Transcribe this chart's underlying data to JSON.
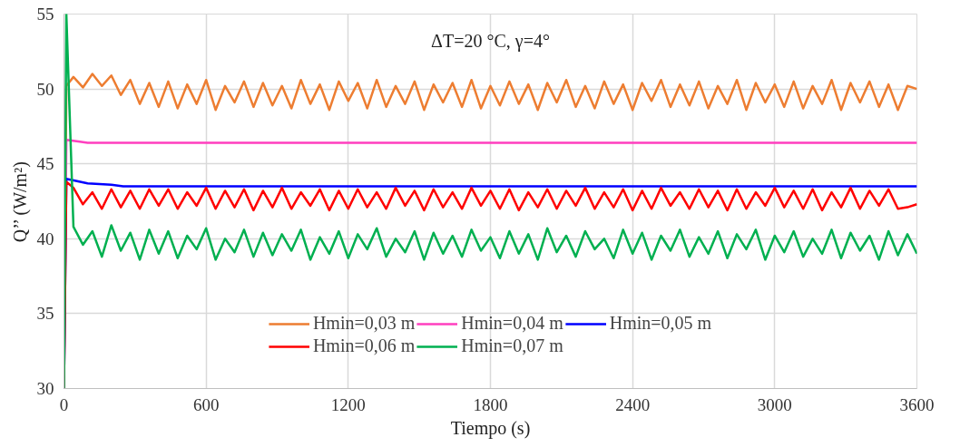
{
  "chart_data": {
    "type": "line",
    "xlabel": "Tiempo (s)",
    "ylabel": "Q’’ (W/m²)",
    "annotations": [
      "ΔT=20 °C, γ=4°"
    ],
    "xlim": [
      0,
      3600
    ],
    "xticks": [
      0,
      600,
      1200,
      1800,
      2400,
      3000,
      3600
    ],
    "ylim": [
      30,
      55
    ],
    "yticks": [
      30,
      35,
      40,
      45,
      50,
      55
    ],
    "grid": true,
    "legend": "bottom",
    "marker": "none",
    "line_style": "solid",
    "x": [
      0,
      10,
      40,
      80,
      120,
      160,
      200,
      240,
      280,
      320,
      360,
      400,
      440,
      480,
      520,
      560,
      600,
      640,
      680,
      720,
      760,
      800,
      840,
      880,
      920,
      960,
      1000,
      1040,
      1080,
      1120,
      1160,
      1200,
      1240,
      1280,
      1320,
      1360,
      1400,
      1440,
      1480,
      1520,
      1560,
      1600,
      1640,
      1680,
      1720,
      1760,
      1800,
      1840,
      1880,
      1920,
      1960,
      2000,
      2040,
      2080,
      2120,
      2160,
      2200,
      2240,
      2280,
      2320,
      2360,
      2400,
      2440,
      2480,
      2520,
      2560,
      2600,
      2640,
      2680,
      2720,
      2760,
      2800,
      2840,
      2880,
      2920,
      2960,
      3000,
      3040,
      3080,
      3120,
      3160,
      3200,
      3240,
      3280,
      3320,
      3360,
      3400,
      3440,
      3480,
      3520,
      3560,
      3600
    ],
    "series": [
      {
        "name": "Hmin=0,03 m",
        "color": "#ed7d31",
        "values": [
          30,
          50.2,
          50.8,
          50.1,
          51.0,
          50.2,
          50.9,
          49.6,
          50.6,
          49.0,
          50.4,
          48.8,
          50.5,
          48.7,
          50.3,
          49.0,
          50.6,
          48.6,
          50.2,
          49.1,
          50.5,
          48.8,
          50.4,
          48.9,
          50.2,
          48.7,
          50.6,
          49.0,
          50.3,
          48.6,
          50.5,
          49.2,
          50.4,
          48.7,
          50.6,
          48.8,
          50.2,
          49.0,
          50.5,
          48.6,
          50.3,
          49.1,
          50.4,
          48.8,
          50.6,
          48.7,
          50.2,
          48.9,
          50.5,
          49.0,
          50.3,
          48.6,
          50.4,
          49.1,
          50.6,
          48.8,
          50.2,
          48.7,
          50.5,
          49.0,
          50.3,
          48.6,
          50.4,
          49.2,
          50.6,
          48.8,
          50.3,
          48.9,
          50.5,
          48.7,
          50.2,
          49.0,
          50.6,
          48.6,
          50.4,
          49.1,
          50.3,
          48.8,
          50.5,
          48.7,
          50.2,
          49.0,
          50.6,
          48.6,
          50.4,
          49.1,
          50.5,
          48.8,
          50.3,
          48.6,
          50.2,
          50.0
        ]
      },
      {
        "name": "Hmin=0,04 m",
        "color": "#ff3fbf",
        "x": [
          0,
          10,
          60,
          100,
          3600
        ],
        "values": [
          30,
          46.6,
          46.5,
          46.4,
          46.4
        ]
      },
      {
        "name": "Hmin=0,05 m",
        "color": "#0000ff",
        "x": [
          0,
          10,
          100,
          200,
          250,
          3600
        ],
        "values": [
          30,
          44.0,
          43.7,
          43.6,
          43.5,
          43.5
        ]
      },
      {
        "name": "Hmin=0,06 m",
        "color": "#ff0000",
        "values": [
          30,
          43.8,
          43.4,
          42.3,
          43.1,
          42.0,
          43.3,
          42.1,
          43.2,
          42.0,
          43.3,
          42.2,
          43.3,
          42.0,
          43.1,
          42.2,
          43.4,
          42.0,
          43.2,
          42.1,
          43.3,
          41.9,
          43.2,
          42.1,
          43.4,
          42.0,
          43.1,
          42.2,
          43.3,
          41.9,
          43.2,
          42.0,
          43.3,
          42.1,
          43.1,
          42.0,
          43.4,
          42.2,
          43.2,
          41.9,
          43.3,
          42.1,
          43.1,
          42.0,
          43.4,
          42.2,
          43.2,
          42.0,
          43.3,
          41.9,
          43.1,
          42.1,
          43.3,
          42.0,
          43.2,
          42.2,
          43.4,
          42.0,
          43.1,
          42.1,
          43.3,
          41.9,
          43.2,
          42.0,
          43.4,
          42.2,
          43.1,
          42.0,
          43.3,
          42.1,
          43.2,
          41.9,
          43.3,
          42.0,
          43.1,
          42.2,
          43.4,
          42.1,
          43.2,
          42.0,
          43.3,
          41.9,
          43.1,
          42.1,
          43.4,
          42.0,
          43.2,
          42.2,
          43.3,
          42.0,
          42.1,
          42.3
        ]
      },
      {
        "name": "Hmin=0,07 m",
        "color": "#00b050",
        "values": [
          30,
          55,
          40.8,
          39.6,
          40.5,
          38.8,
          40.9,
          39.2,
          40.4,
          38.6,
          40.6,
          39.0,
          40.5,
          38.7,
          40.2,
          39.3,
          40.7,
          38.6,
          40.0,
          39.1,
          40.6,
          38.8,
          40.4,
          38.9,
          40.3,
          39.2,
          40.6,
          38.6,
          40.1,
          39.0,
          40.5,
          38.7,
          40.3,
          39.3,
          40.7,
          38.8,
          40.0,
          39.1,
          40.5,
          38.6,
          40.4,
          39.0,
          40.2,
          38.8,
          40.6,
          39.2,
          40.1,
          38.7,
          40.5,
          39.0,
          40.3,
          38.6,
          40.7,
          39.1,
          40.2,
          38.8,
          40.5,
          39.3,
          40.0,
          38.7,
          40.6,
          39.0,
          40.4,
          38.6,
          40.2,
          39.2,
          40.6,
          38.8,
          40.1,
          39.0,
          40.5,
          38.7,
          40.3,
          39.3,
          40.6,
          38.6,
          40.2,
          39.1,
          40.5,
          38.8,
          40.0,
          39.0,
          40.6,
          38.7,
          40.4,
          39.2,
          40.2,
          38.6,
          40.5,
          38.9,
          40.3,
          39.0
        ]
      }
    ]
  }
}
